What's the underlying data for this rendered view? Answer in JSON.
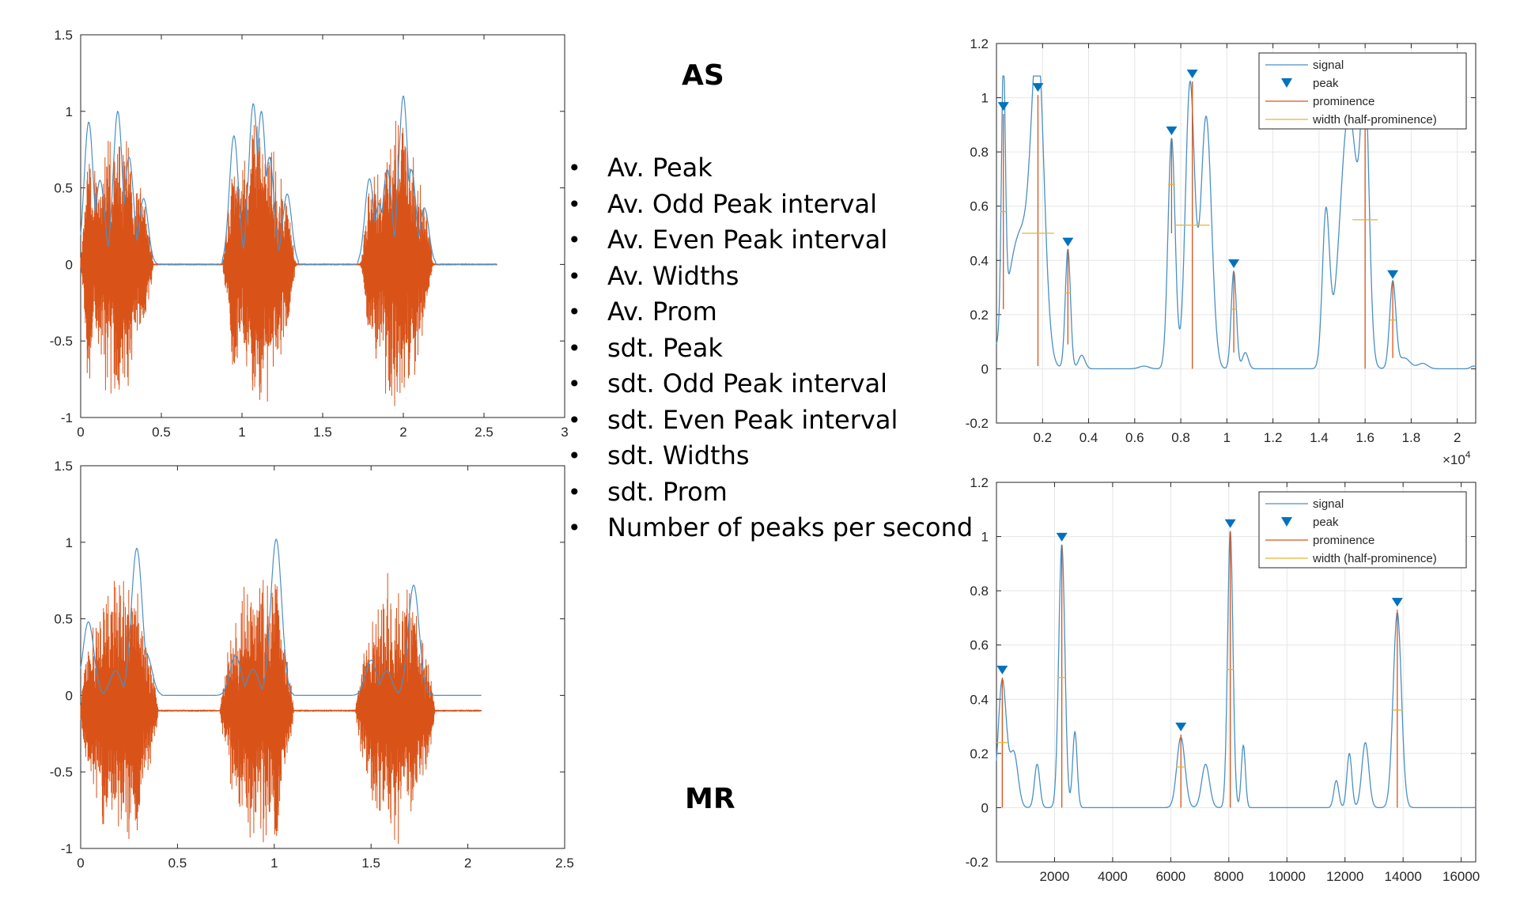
{
  "labels": {
    "as": "AS",
    "mr": "MR"
  },
  "features": [
    "Av. Peak",
    "Av. Odd Peak interval",
    "Av. Even Peak interval",
    "Av. Widths",
    "Av. Prom",
    "sdt. Peak",
    "sdt. Odd Peak interval",
    "sdt. Even Peak interval",
    "sdt. Widths",
    "sdt. Prom",
    "Number of peaks per second"
  ],
  "colors": {
    "signal": "#4a90c4",
    "raw": "#d95319",
    "prominence": "#d95319",
    "width": "#e6b233",
    "peak": "#0072bd",
    "grid": "#e6e6e6",
    "axis": "#262626"
  },
  "chart_data": [
    {
      "id": "as-waveform",
      "type": "line",
      "xlim": [
        0,
        3
      ],
      "ylim": [
        -1,
        1.5
      ],
      "xticks": [
        0,
        0.5,
        1,
        1.5,
        2,
        2.5,
        3
      ],
      "yticks": [
        -1,
        -0.5,
        0,
        0.5,
        1,
        1.5
      ],
      "tick_labels_x": [
        "0",
        "0.5",
        "1",
        "1.5",
        "2",
        "2.5",
        "3"
      ],
      "tick_labels_y": [
        "-1",
        "-0.5",
        "0",
        "0.5",
        "1",
        "1.5"
      ],
      "grid": false,
      "x_end": 2.58,
      "envelope_peaks": [
        [
          0.05,
          0.93
        ],
        [
          0.12,
          0.55
        ],
        [
          0.23,
          1.0
        ],
        [
          0.3,
          0.7
        ],
        [
          0.39,
          0.43
        ],
        [
          0.95,
          0.84
        ],
        [
          1.07,
          1.05
        ],
        [
          1.12,
          1.0
        ],
        [
          1.17,
          0.7
        ],
        [
          1.28,
          0.46
        ],
        [
          1.79,
          0.56
        ],
        [
          1.85,
          0.4
        ],
        [
          1.9,
          0.62
        ],
        [
          2.0,
          1.1
        ],
        [
          2.05,
          0.62
        ],
        [
          2.13,
          0.37
        ]
      ],
      "envelope_segments": [
        [
          0,
          0.5
        ],
        [
          0.88,
          1.35
        ],
        [
          1.72,
          2.2
        ]
      ],
      "raw_bursts": [
        [
          0.0,
          0.45,
          0.95
        ],
        [
          0.88,
          1.33,
          1.0
        ],
        [
          1.74,
          2.18,
          1.0
        ]
      ]
    },
    {
      "id": "mr-waveform",
      "type": "line",
      "xlim": [
        0,
        2.5
      ],
      "ylim": [
        -1,
        1.5
      ],
      "xticks": [
        0,
        0.5,
        1,
        1.5,
        2,
        2.5
      ],
      "yticks": [
        -1,
        -0.5,
        0,
        0.5,
        1,
        1.5
      ],
      "tick_labels_x": [
        "0",
        "0.5",
        "1",
        "1.5",
        "2",
        "2.5"
      ],
      "tick_labels_y": [
        "-1",
        "-0.5",
        "0",
        "0.5",
        "1",
        "1.5"
      ],
      "grid": false,
      "x_end": 2.07,
      "envelope_peaks": [
        [
          0.04,
          0.48
        ],
        [
          0.18,
          0.16
        ],
        [
          0.29,
          0.96
        ],
        [
          0.34,
          0.27
        ],
        [
          0.8,
          0.26
        ],
        [
          0.89,
          0.17
        ],
        [
          1.01,
          1.02
        ],
        [
          1.5,
          0.23
        ],
        [
          1.58,
          0.16
        ],
        [
          1.72,
          0.72
        ]
      ],
      "envelope_segments": [
        [
          0,
          0.42
        ],
        [
          0.7,
          1.1
        ],
        [
          1.4,
          1.85
        ]
      ],
      "raw_bursts": [
        [
          0.0,
          0.4,
          0.95
        ],
        [
          0.72,
          1.1,
          0.95
        ],
        [
          1.42,
          1.83,
          0.95
        ]
      ],
      "raw_baseline": -0.1
    },
    {
      "id": "as-peaks",
      "type": "line",
      "xlim": [
        0,
        20800
      ],
      "ylim": [
        -0.2,
        1.2
      ],
      "xticks": [
        2000,
        4000,
        6000,
        8000,
        10000,
        12000,
        14000,
        16000,
        18000,
        20000
      ],
      "yticks": [
        -0.2,
        0,
        0.2,
        0.4,
        0.6,
        0.8,
        1,
        1.2
      ],
      "tick_labels_x": [
        "0.2",
        "0.4",
        "0.6",
        "0.8",
        "1",
        "1.2",
        "1.4",
        "1.6",
        "1.8",
        "2"
      ],
      "tick_labels_y": [
        "-0.2",
        "0",
        "0.2",
        "0.4",
        "0.6",
        "0.8",
        "1",
        "1.2"
      ],
      "exponent": "×10",
      "exponent_power": "4",
      "grid": true,
      "legend": {
        "position": "top-right",
        "entries": [
          "signal",
          "peak",
          "prominence",
          "width (half-prominence)"
        ]
      },
      "bumps": [
        [
          300,
          0.94,
          120
        ],
        [
          1050,
          0.5,
          800
        ],
        [
          1800,
          1.01,
          380
        ],
        [
          3100,
          0.44,
          160
        ],
        [
          3700,
          0.05,
          200
        ],
        [
          6400,
          0.01,
          300
        ],
        [
          7600,
          0.85,
          220
        ],
        [
          8400,
          1.05,
          280
        ],
        [
          9100,
          0.93,
          330
        ],
        [
          10300,
          0.36,
          160
        ],
        [
          10800,
          0.06,
          180
        ],
        [
          14300,
          0.56,
          220
        ],
        [
          15300,
          0.95,
          550
        ],
        [
          16000,
          0.92,
          250
        ],
        [
          17200,
          0.32,
          190
        ],
        [
          17700,
          0.04,
          350
        ],
        [
          18500,
          0.02,
          300
        ],
        [
          20700,
          0.01,
          180
        ]
      ],
      "peaks": [
        {
          "x": 300,
          "y": 0.94,
          "prom": 0.72,
          "half": 0.58,
          "hw": 130
        },
        {
          "x": 1800,
          "y": 1.01,
          "prom": 1.0,
          "half": 0.5,
          "hw": 700
        },
        {
          "x": 3100,
          "y": 0.44,
          "prom": 0.35,
          "half": 0.28,
          "hw": 120
        },
        {
          "x": 7600,
          "y": 0.85,
          "prom": 0.35,
          "half": 0.68,
          "hw": 150
        },
        {
          "x": 8500,
          "y": 1.06,
          "prom": 1.06,
          "half": 0.53,
          "hw": 750
        },
        {
          "x": 10300,
          "y": 0.36,
          "prom": 0.3,
          "half": 0.22,
          "hw": 130
        },
        {
          "x": 16000,
          "y": 0.92,
          "prom": 0.92,
          "half": 0.55,
          "hw": 550
        },
        {
          "x": 17200,
          "y": 0.32,
          "prom": 0.28,
          "half": 0.18,
          "hw": 130
        }
      ]
    },
    {
      "id": "mr-peaks",
      "type": "line",
      "xlim": [
        0,
        16500
      ],
      "ylim": [
        -0.2,
        1.2
      ],
      "xticks": [
        2000,
        4000,
        6000,
        8000,
        10000,
        12000,
        14000,
        16000
      ],
      "yticks": [
        -0.2,
        0,
        0.2,
        0.4,
        0.6,
        0.8,
        1,
        1.2
      ],
      "tick_labels_x": [
        "2000",
        "4000",
        "6000",
        "8000",
        "10000",
        "12000",
        "14000",
        "16000"
      ],
      "tick_labels_y": [
        "-0.2",
        "0",
        "0.2",
        "0.4",
        "0.6",
        "0.8",
        "1",
        "1.2"
      ],
      "grid": true,
      "legend": {
        "position": "top-right",
        "entries": [
          "signal",
          "peak",
          "prominence",
          "width (half-prominence)"
        ]
      },
      "bumps": [
        [
          200,
          0.47,
          200
        ],
        [
          600,
          0.2,
          200
        ],
        [
          1400,
          0.16,
          130
        ],
        [
          2250,
          0.97,
          150
        ],
        [
          2700,
          0.28,
          110
        ],
        [
          6350,
          0.26,
          200
        ],
        [
          7200,
          0.16,
          190
        ],
        [
          8050,
          1.02,
          130
        ],
        [
          8500,
          0.23,
          100
        ],
        [
          11700,
          0.1,
          120
        ],
        [
          12150,
          0.2,
          120
        ],
        [
          12700,
          0.24,
          170
        ],
        [
          13800,
          0.72,
          200
        ]
      ],
      "peaks": [
        {
          "x": 200,
          "y": 0.48,
          "prom": 0.48,
          "half": 0.24,
          "hw": 200
        },
        {
          "x": 2250,
          "y": 0.97,
          "prom": 0.97,
          "half": 0.48,
          "hw": 150
        },
        {
          "x": 6350,
          "y": 0.27,
          "prom": 0.27,
          "half": 0.15,
          "hw": 170
        },
        {
          "x": 8050,
          "y": 1.02,
          "prom": 1.02,
          "half": 0.51,
          "hw": 120
        },
        {
          "x": 13800,
          "y": 0.73,
          "prom": 0.73,
          "half": 0.36,
          "hw": 200
        }
      ]
    }
  ]
}
